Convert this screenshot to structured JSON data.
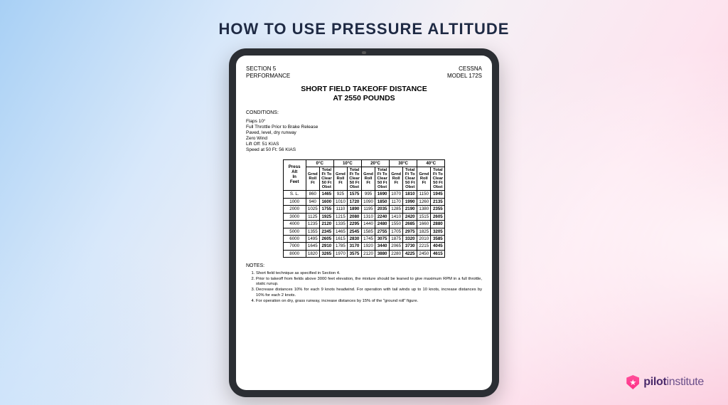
{
  "slide": {
    "title": "HOW TO USE PRESSURE ALTITUDE"
  },
  "logo": {
    "brand_bold": "pilot",
    "brand_light": "institute",
    "star": "★"
  },
  "doc": {
    "header_left_1": "SECTION 5",
    "header_left_2": "PERFORMANCE",
    "header_right_1": "CESSNA",
    "header_right_2": "MODEL 172S",
    "title_1": "SHORT FIELD TAKEOFF DISTANCE",
    "title_2": "AT 2550 POUNDS",
    "conditions_label": "CONDITIONS:",
    "conditions": [
      "Flaps 10°",
      "Full Throttle Prior to Brake Release",
      "Paved, level, dry runway",
      "Zero Wind",
      "Lift Off:            51 KIAS",
      "Speed at 50 Ft:  56 KIAS"
    ],
    "press_col": "Press\nAlt\nIn\nFeet",
    "temps": [
      "0°C",
      "10°C",
      "20°C",
      "30°C",
      "40°C"
    ],
    "sub_a": "Grnd\nRoll\nFt",
    "sub_b": "Total\nFt To\nClear\n50 Ft\nObst",
    "rows": [
      {
        "alt": "S. L.",
        "v": [
          "860",
          "1465",
          "925",
          "1575",
          "995",
          "1690",
          "1070",
          "1810",
          "1150",
          "1945"
        ]
      },
      {
        "alt": "1000",
        "v": [
          "940",
          "1600",
          "1010",
          "1720",
          "1090",
          "1850",
          "1170",
          "1990",
          "1260",
          "2135"
        ]
      },
      {
        "alt": "2000",
        "v": [
          "1025",
          "1755",
          "1110",
          "1890",
          "1195",
          "2035",
          "1285",
          "2190",
          "1380",
          "2355"
        ]
      },
      {
        "alt": "3000",
        "v": [
          "1125",
          "1925",
          "1215",
          "2080",
          "1310",
          "2240",
          "1410",
          "2420",
          "1515",
          "2605"
        ]
      },
      {
        "alt": "4000",
        "v": [
          "1235",
          "2120",
          "1335",
          "2295",
          "1440",
          "2480",
          "1550",
          "2685",
          "1660",
          "2880"
        ]
      },
      {
        "alt": "5000",
        "v": [
          "1355",
          "2345",
          "1465",
          "2545",
          "1585",
          "2755",
          "1705",
          "2975",
          "1825",
          "3205"
        ]
      },
      {
        "alt": "6000",
        "v": [
          "1495",
          "2605",
          "1615",
          "2830",
          "1745",
          "3075",
          "1875",
          "3320",
          "2010",
          "3585"
        ]
      },
      {
        "alt": "7000",
        "v": [
          "1645",
          "2910",
          "1785",
          "3170",
          "1920",
          "3440",
          "2065",
          "3730",
          "2215",
          "4045"
        ]
      },
      {
        "alt": "8000",
        "v": [
          "1820",
          "3265",
          "1970",
          "3575",
          "2120",
          "3880",
          "2280",
          "4225",
          "2450",
          "4615"
        ]
      }
    ],
    "notes_label": "NOTES:",
    "notes": [
      "Short field technique as specified in Section 4.",
      "Prior to takeoff from fields above 3000 feet elevation, the mixture should be leaned to give maximum RPM in a full throttle, static runup.",
      "Decrease distances 10% for each 9 knots headwind. For operation with tail winds up to 10 knots, increase distances by 10% for each 2 knots.",
      "For operation on dry, grass runway, increase distances by 15% of the \"ground roll\" figure."
    ]
  },
  "colors": {
    "title": "#1f2a44",
    "tablet_bezel": "#2b2e33",
    "logo_pink": "#ff2e87",
    "logo_text": "#4a2a6b"
  }
}
